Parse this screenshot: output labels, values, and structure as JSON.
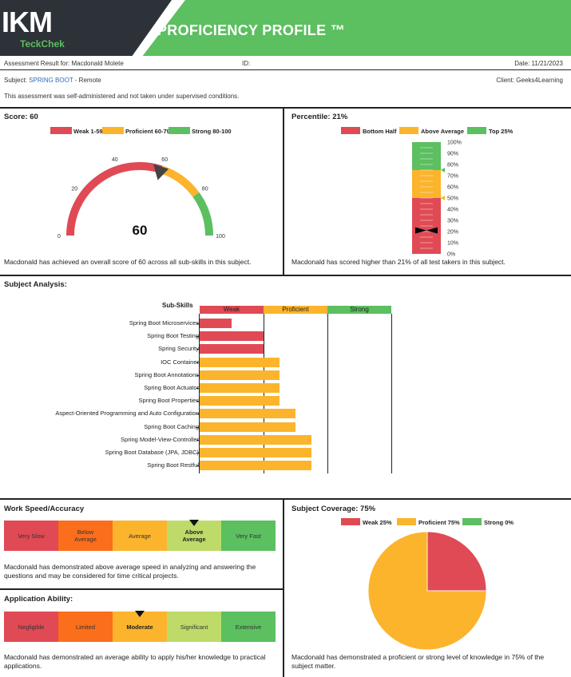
{
  "header": {
    "logo": "IKM",
    "logo_sub": "TeckChek",
    "title": "PROFICIENCY PROFILE ™"
  },
  "info": {
    "assessment_result": "Assessment Result for: Macdonald Molete",
    "id_label": "ID:",
    "date": "Date: 11/21/2023",
    "subject_prefix": "Subject:",
    "subject": "SPRING BOOT",
    "subject_suffix": " - Remote",
    "client": "Client: Geeks4Learning",
    "note": "This assessment was self-administered and not taken under supervised conditions."
  },
  "score": {
    "title": "Score: 60",
    "value": "60",
    "legend": [
      {
        "label": "Weak 1-59",
        "color": "#e04a55"
      },
      {
        "label": "Proficient 60-79",
        "color": "#fbb42c"
      },
      {
        "label": "Strong 80-100",
        "color": "#5cbf60"
      }
    ],
    "ticks": [
      "0",
      "20",
      "40",
      "60",
      "80",
      "100"
    ],
    "footer": "Macdonald has achieved an overall score of 60 across all sub-skills in this subject."
  },
  "percentile": {
    "title": "Percentile: 21%",
    "value": 21,
    "legend": [
      {
        "label": "Bottom Half",
        "color": "#e04a55"
      },
      {
        "label": "Above Average",
        "color": "#fbb42c"
      },
      {
        "label": "Top 25%",
        "color": "#5cbf60"
      }
    ],
    "ticks": [
      "100%",
      "90%",
      "80%",
      "70%",
      "60%",
      "50%",
      "40%",
      "30%",
      "20%",
      "10%",
      "0%"
    ],
    "footer": "Macdonald has scored higher than 21% of all test takers in this subject."
  },
  "analysis": {
    "title": "Subject Analysis:",
    "column_header": "Sub-Skills",
    "bands": [
      {
        "label": "Weak",
        "color": "#e04a55"
      },
      {
        "label": "Proficient",
        "color": "#fbb42c"
      },
      {
        "label": "Strong",
        "color": "#5cbf60"
      }
    ]
  },
  "chart_data": {
    "type": "bar",
    "orientation": "horizontal",
    "categories": [
      "Spring Boot Microservices",
      "Spring Boot Testing",
      "Spring Security",
      "IOC Container",
      "Spring Boot Annotations",
      "Spring Boot Actuator",
      "Spring Boot Properties",
      "Aspect-Oriented Programming and Auto Configuration",
      "Spring Boot Caching",
      "Spring Model-View-Controller",
      "Spring Boot Database (JPA, JDBC)",
      "Spring Boot Restful"
    ],
    "values": [
      10,
      20,
      20,
      25,
      25,
      25,
      25,
      30,
      30,
      35,
      35,
      35
    ],
    "colors": [
      "#e04a55",
      "#e04a55",
      "#e04a55",
      "#fbb42c",
      "#fbb42c",
      "#fbb42c",
      "#fbb42c",
      "#fbb42c",
      "#fbb42c",
      "#fbb42c",
      "#fbb42c",
      "#fbb42c"
    ],
    "xlim": [
      0,
      60
    ]
  },
  "speed": {
    "title": "Work Speed/Accuracy",
    "cells": [
      {
        "label": "Very Slow",
        "color": "#e04a55"
      },
      {
        "label": "Below Average",
        "color": "#fb6e1c"
      },
      {
        "label": "Average",
        "color": "#fbb42c"
      },
      {
        "label": "Above Average",
        "color": "#bedb6a"
      },
      {
        "label": "Very Fast",
        "color": "#5cbf60"
      }
    ],
    "selected_index": 3,
    "footer": "Macdonald has demonstrated above average speed in analyzing and answering the questions and may be considered for time critical projects."
  },
  "application": {
    "title": "Application Ability:",
    "cells": [
      {
        "label": "Negligible",
        "color": "#e04a55"
      },
      {
        "label": "Limited",
        "color": "#fb6e1c"
      },
      {
        "label": "Moderate",
        "color": "#fbb42c"
      },
      {
        "label": "Significant",
        "color": "#bedb6a"
      },
      {
        "label": "Extensive",
        "color": "#5cbf60"
      }
    ],
    "selected_index": 2,
    "footer": "Macdonald has demonstrated an average ability to apply his/her knowledge to practical applications."
  },
  "coverage": {
    "title": "Subject Coverage: 75%",
    "legend": [
      {
        "label": "Weak 25%",
        "color": "#e04a55"
      },
      {
        "label": "Proficient 75%",
        "color": "#fbb42c"
      },
      {
        "label": "Strong 0%",
        "color": "#5cbf60"
      }
    ],
    "slices": [
      25,
      75,
      0
    ],
    "footer": "Macdonald has demonstrated a proficient or strong level of knowledge in 75% of the subject matter."
  }
}
